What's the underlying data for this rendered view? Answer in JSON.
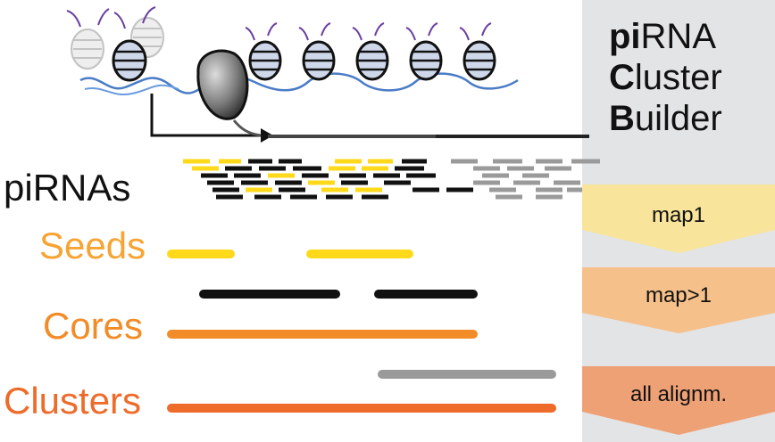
{
  "title": {
    "line1_bold": "pi",
    "line1_rest": "RNA",
    "line2_bold": "C",
    "line2_rest": "luster",
    "line3_bold": "B",
    "line3_rest": "uilder"
  },
  "labels": {
    "pirnas": "piRNAs",
    "seeds": "Seeds",
    "cores": "Cores",
    "clusters": "Clusters"
  },
  "steps": [
    {
      "label": "map1",
      "color": "#f8e49a"
    },
    {
      "label": "map>1",
      "color": "#f5c08a"
    },
    {
      "label": "all alignm.",
      "color": "#efa176"
    }
  ],
  "colors": {
    "seeds": "#f7a434",
    "cores": "#f28c28",
    "clusters": "#ee6b2a",
    "yellow": "#ffd91a",
    "black": "#111111",
    "gray": "#9a9a9a"
  }
}
